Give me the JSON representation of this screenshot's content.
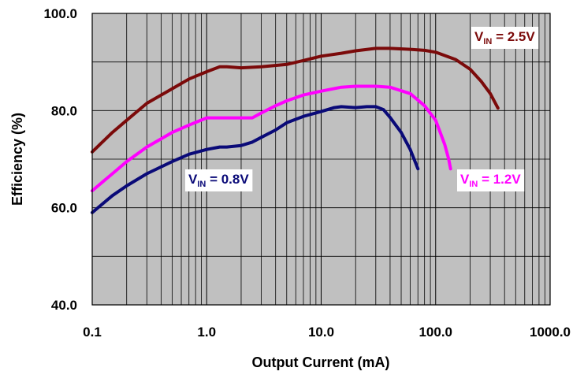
{
  "chart_data": {
    "type": "line",
    "xlabel": "Output Current (mA)",
    "ylabel": "Efficiency (%)",
    "xscale": "log",
    "xlim": [
      0.1,
      1000
    ],
    "ylim": [
      40,
      100
    ],
    "x_ticks": [
      "0.1",
      "1.0",
      "10.0",
      "100.0",
      "1000.0"
    ],
    "y_ticks": [
      "40.0",
      "60.0",
      "80.0",
      "100.0"
    ],
    "grid": "on",
    "plot_background": "#c0c0c0",
    "series": [
      {
        "name": "V_IN = 2.5V",
        "label_main": "V",
        "label_sub": "IN",
        "label_rest": " = 2.5V",
        "color": "#7b0a0a",
        "x": [
          0.1,
          0.15,
          0.2,
          0.3,
          0.5,
          0.7,
          1.0,
          1.3,
          1.5,
          2.0,
          3.0,
          5.0,
          7.0,
          10.0,
          15.0,
          20.0,
          30.0,
          40.0,
          60.0,
          80.0,
          100.0,
          150.0,
          200.0,
          250.0,
          300.0,
          350.0
        ],
        "y": [
          71.5,
          75.5,
          78,
          81.5,
          84.5,
          86.5,
          88,
          89,
          89,
          88.8,
          89,
          89.5,
          90.3,
          91.2,
          91.8,
          92.3,
          92.8,
          92.8,
          92.6,
          92.4,
          92,
          90.5,
          88.5,
          86,
          83.5,
          80.5
        ]
      },
      {
        "name": "V_IN = 1.2V",
        "label_main": "V",
        "label_sub": "IN",
        "label_rest": " = 1.2V",
        "color": "#ff00ff",
        "x": [
          0.1,
          0.15,
          0.2,
          0.3,
          0.5,
          0.7,
          1.0,
          1.2,
          1.5,
          2.0,
          2.5,
          3.0,
          4.0,
          5.0,
          7.0,
          10.0,
          15.0,
          20.0,
          30.0,
          40.0,
          60.0,
          80.0,
          100.0,
          120.0,
          130.0,
          135.0
        ],
        "y": [
          63.5,
          67,
          69.5,
          72.5,
          75.5,
          77,
          78.5,
          78.5,
          78.5,
          78.5,
          78.5,
          79.5,
          81,
          82,
          83.2,
          84,
          84.8,
          85,
          85,
          84.8,
          83.5,
          81,
          78,
          73,
          70,
          68
        ]
      },
      {
        "name": "V_IN = 0.8V",
        "label_main": "V",
        "label_sub": "IN",
        "label_rest": " = 0.8V",
        "color": "#0a0a78",
        "x": [
          0.1,
          0.15,
          0.2,
          0.3,
          0.5,
          0.7,
          1.0,
          1.3,
          1.5,
          2.0,
          2.5,
          3.0,
          4.0,
          5.0,
          7.0,
          10.0,
          13.0,
          15.0,
          20.0,
          25.0,
          30.0,
          35.0,
          40.0,
          50.0,
          60.0,
          70.0
        ],
        "y": [
          59,
          62.5,
          64.5,
          67,
          69.5,
          71,
          72,
          72.5,
          72.5,
          72.8,
          73.5,
          74.5,
          76,
          77.5,
          78.8,
          79.8,
          80.6,
          80.8,
          80.6,
          80.8,
          80.8,
          80.2,
          78.6,
          75.5,
          72,
          68
        ]
      }
    ]
  }
}
